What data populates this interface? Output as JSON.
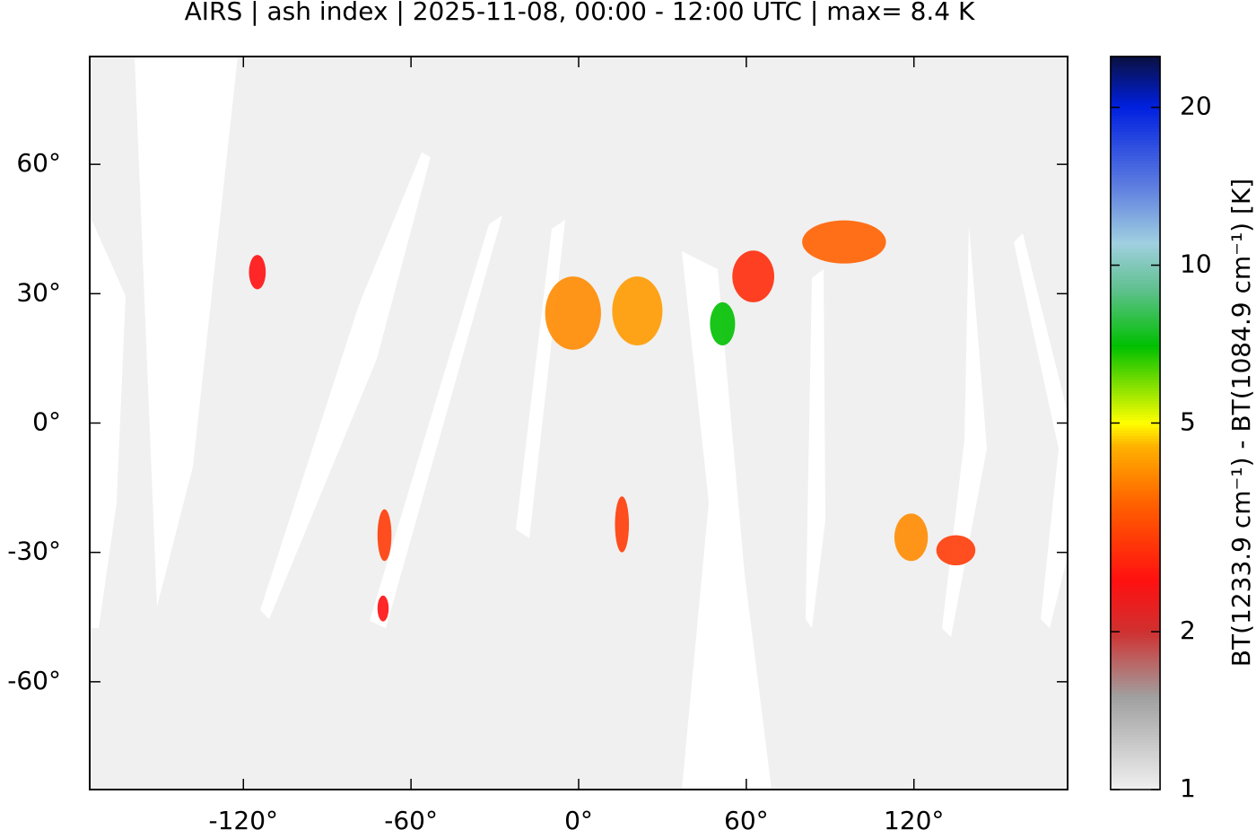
{
  "chart_data": {
    "type": "map",
    "title": "AIRS | ash index | 2025-11-08, 00:00 - 12:00 UTC | max= 8.4 K",
    "xlim": [
      -175,
      175
    ],
    "ylim": [
      -85,
      85
    ],
    "xticks": [
      {
        "value": -120,
        "label": "-120°"
      },
      {
        "value": -60,
        "label": "-60°"
      },
      {
        "value": 0,
        "label": "0°"
      },
      {
        "value": 60,
        "label": "60°"
      },
      {
        "value": 120,
        "label": "120°"
      }
    ],
    "yticks": [
      {
        "value": -60,
        "label": "-60°"
      },
      {
        "value": -30,
        "label": "-30°"
      },
      {
        "value": 0,
        "label": "0°"
      },
      {
        "value": 30,
        "label": "30°"
      },
      {
        "value": 60,
        "label": "60°"
      }
    ],
    "colorbar": {
      "label": "BT(1233.9 cm⁻¹) - BT(1084.9 cm⁻¹) [K]",
      "lim": [
        1,
        25
      ],
      "ticks": [
        1,
        2,
        5,
        10,
        20
      ],
      "log_scale": true,
      "colorscale": [
        [
          1,
          "#f0f0f0"
        ],
        [
          1.5,
          "#a0a0a0"
        ],
        [
          2,
          "#d03030"
        ],
        [
          2.5,
          "#ff1010"
        ],
        [
          3.5,
          "#ff6000"
        ],
        [
          4.5,
          "#ffb000"
        ],
        [
          5,
          "#ffff00"
        ],
        [
          7,
          "#00c000"
        ],
        [
          9,
          "#60c090"
        ],
        [
          11,
          "#a0d0e0"
        ],
        [
          14,
          "#6080e0"
        ],
        [
          20,
          "#0020e0"
        ],
        [
          25,
          "#0a1040"
        ]
      ]
    },
    "features": [
      {
        "lon": [
          -12,
          8
        ],
        "lat": [
          17,
          34
        ],
        "value": 4
      },
      {
        "lon": [
          12,
          30
        ],
        "lat": [
          18,
          34
        ],
        "value": 4.2
      },
      {
        "lon": [
          47,
          56
        ],
        "lat": [
          18,
          28
        ],
        "value": 7
      },
      {
        "lon": [
          113,
          125
        ],
        "lat": [
          -21,
          -32
        ],
        "value": 4
      },
      {
        "lon": [
          128,
          142
        ],
        "lat": [
          -26,
          -33
        ],
        "value": 3
      },
      {
        "lon": [
          80,
          110
        ],
        "lat": [
          37,
          47
        ],
        "value": 3.5
      },
      {
        "lon": [
          -72,
          -67
        ],
        "lat": [
          -20,
          -32
        ],
        "value": 3
      },
      {
        "lon": [
          13,
          18
        ],
        "lat": [
          -17,
          -30
        ],
        "value": 3
      },
      {
        "lon": [
          55,
          70
        ],
        "lat": [
          28,
          40
        ],
        "value": 2.8
      },
      {
        "lon": [
          -118,
          -112
        ],
        "lat": [
          31,
          39
        ],
        "value": 2.5
      },
      {
        "lon": [
          -72,
          -68
        ],
        "lat": [
          -40,
          -46
        ],
        "value": 2.5
      }
    ]
  }
}
